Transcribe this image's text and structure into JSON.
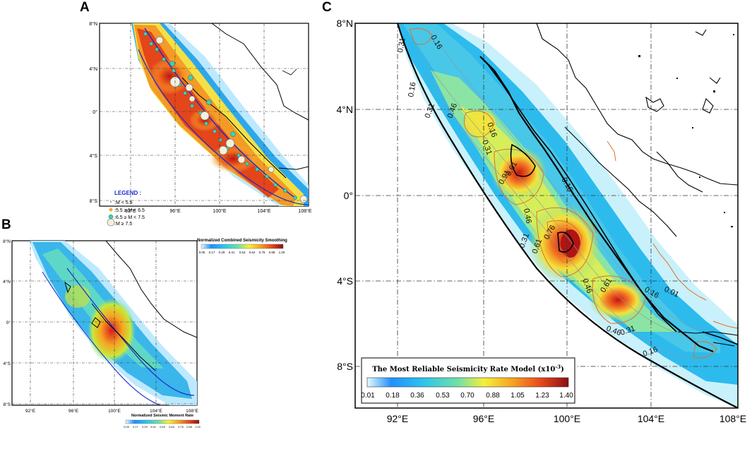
{
  "panels": {
    "a": {
      "label": "A",
      "lat_ticks": [
        "8°N",
        "4°N",
        "0°",
        "4°S",
        "8°S"
      ],
      "lon_ticks": [
        "92°E",
        "96°E",
        "100°E",
        "104°E",
        "108°E"
      ],
      "legend": {
        "title": "LEGEND :",
        "items": [
          ":M < 5.5",
          ":5.5 ≥ M < 6.5",
          ":6.5 ≥ M < 7.5",
          ":M ≥ 7.5"
        ]
      },
      "colorbar": {
        "title": "Normalized Combined Seismicity Smoothing",
        "ticks": [
          "0.05",
          "0.17",
          "0.29",
          "0.41",
          "0.53",
          "0.64",
          "0.76",
          "0.88",
          "1.00"
        ]
      }
    },
    "b": {
      "label": "B",
      "lat_ticks": [
        "8°N",
        "4°N",
        "0°",
        "4°S",
        "8°S"
      ],
      "lon_ticks": [
        "92°E",
        "96°E",
        "100°E",
        "104°E",
        "108°E"
      ],
      "colorbar": {
        "title": "Normalized Seismic Moment Rate",
        "ticks": [
          "0.05",
          "0.17",
          "0.29",
          "0.41",
          "0.53",
          "0.64",
          "0.76",
          "0.88",
          "1.00"
        ]
      }
    },
    "c": {
      "label": "C",
      "lat_ticks": [
        "8°N",
        "4°N",
        "0°",
        "4°S",
        "8°S"
      ],
      "lon_ticks": [
        "92°E",
        "96°E",
        "100°E",
        "104°E",
        "108°E"
      ],
      "contour_labels": [
        "0.31",
        "0.16",
        "0.16",
        "0.31",
        "0.46",
        "0.16",
        "0.31",
        "0.61",
        "0.91",
        "0.46",
        "0.16",
        "0.76",
        "0.61",
        "0.31",
        "0.46",
        "0.61",
        "0.16",
        "0.01",
        "0.46",
        "0.31",
        "0.16"
      ],
      "colorbar": {
        "title": "The Most Reliable Seismicity Rate Model (x10",
        "title_exp": "-3",
        "title_close": ")",
        "ticks": [
          "0.01",
          "0.18",
          "0.36",
          "0.53",
          "0.70",
          "0.88",
          "1.05",
          "1.23",
          "1.40"
        ]
      }
    }
  },
  "colors": {
    "scale": [
      "#c8f4ff",
      "#1e90ff",
      "#2ec4ec",
      "#6fe0a8",
      "#f5f03a",
      "#f7a321",
      "#e84a1a",
      "#a4161a"
    ],
    "coastline": "#000000",
    "fault": "#1a2bd0",
    "contour": "#e0702a"
  }
}
